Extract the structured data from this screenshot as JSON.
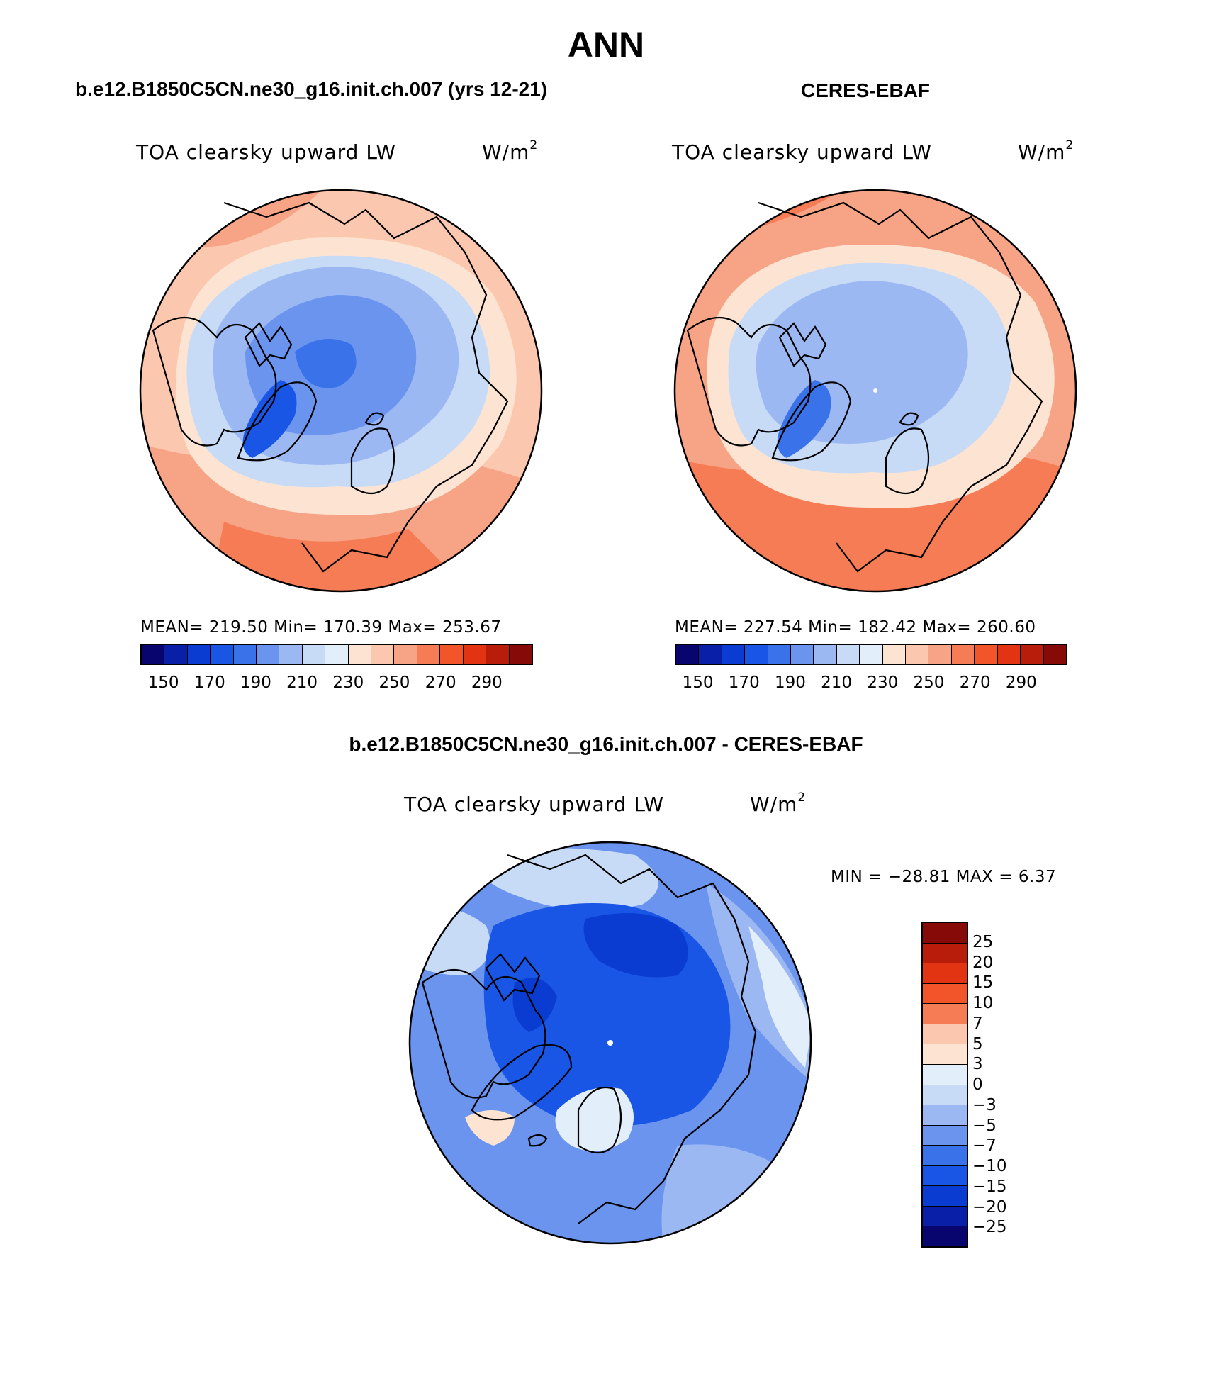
{
  "title": "ANN",
  "panels": {
    "model": {
      "subtitle": "b.e12.B1850C5CN.ne30_g16.init.ch.007 (yrs 12-21)",
      "variable": "TOA clearsky upward LW",
      "units_base": "W/m",
      "units_exp": "2",
      "stats": "MEAN= 219.50   Min= 170.39   Max= 253.67",
      "mean": 219.5,
      "min": 170.39,
      "max": 253.67
    },
    "obs": {
      "subtitle": "CERES-EBAF",
      "variable": "TOA clearsky upward LW",
      "units_base": "W/m",
      "units_exp": "2",
      "stats": "MEAN= 227.54   Min= 182.42   Max= 260.60",
      "mean": 227.54,
      "min": 182.42,
      "max": 260.6
    },
    "diff": {
      "subtitle": "b.e12.B1850C5CN.ne30_g16.init.ch.007 - CERES-EBAF",
      "variable": "TOA clearsky upward LW",
      "units_base": "W/m",
      "units_exp": "2",
      "stats": "MIN = −28.81  MAX =    6.37",
      "min": -28.81,
      "max": 6.37
    }
  },
  "abs_colorbar": {
    "colors": [
      "#08056e",
      "#0a1fa8",
      "#0b3cd2",
      "#1a56e6",
      "#3a72ea",
      "#6a94ee",
      "#9cb8f2",
      "#c7dbf7",
      "#e3eefb",
      "#fde4d2",
      "#fbc7ae",
      "#f7a385",
      "#f57c55",
      "#f2552a",
      "#e23313",
      "#b81d0b",
      "#860a08"
    ],
    "ticks": [
      "150",
      "170",
      "190",
      "210",
      "230",
      "250",
      "270",
      "290"
    ]
  },
  "diff_colorbar": {
    "colors": [
      "#860a08",
      "#b81d0b",
      "#e23313",
      "#f2552a",
      "#f57c55",
      "#fbc7ae",
      "#fde4d2",
      "#e3eefb",
      "#c7dbf7",
      "#9cb8f2",
      "#6a94ee",
      "#3a72ea",
      "#1a56e6",
      "#0b3cd2",
      "#0a1fa8",
      "#08056e"
    ],
    "ticks": [
      "25",
      "20",
      "15",
      "10",
      "7",
      "5",
      "3",
      "0",
      "−3",
      "−5",
      "−7",
      "−10",
      "−15",
      "−20",
      "−25"
    ]
  },
  "chart_data": [
    {
      "type": "heatmap",
      "title": "TOA clearsky upward LW",
      "units": "W/m2",
      "region": "North polar stereographic",
      "levels": [
        150,
        160,
        170,
        180,
        190,
        200,
        210,
        220,
        230,
        240,
        250,
        260,
        270,
        280,
        290
      ],
      "mean": 219.5,
      "min": 170.39,
      "max": 253.67,
      "source": "b.e12.B1850C5CN.ne30_g16.init.ch.007 (yrs 12-21)"
    },
    {
      "type": "heatmap",
      "title": "TOA clearsky upward LW",
      "units": "W/m2",
      "region": "North polar stereographic",
      "levels": [
        150,
        160,
        170,
        180,
        190,
        200,
        210,
        220,
        230,
        240,
        250,
        260,
        270,
        280,
        290
      ],
      "mean": 227.54,
      "min": 182.42,
      "max": 260.6,
      "source": "CERES-EBAF"
    },
    {
      "type": "heatmap",
      "title": "TOA clearsky upward LW",
      "units": "W/m2",
      "region": "North polar stereographic",
      "levels": [
        -25,
        -20,
        -15,
        -10,
        -7,
        -5,
        -3,
        0,
        3,
        5,
        7,
        10,
        15,
        20,
        25
      ],
      "min": -28.81,
      "max": 6.37,
      "source": "b.e12.B1850C5CN.ne30_g16.init.ch.007 - CERES-EBAF"
    }
  ]
}
